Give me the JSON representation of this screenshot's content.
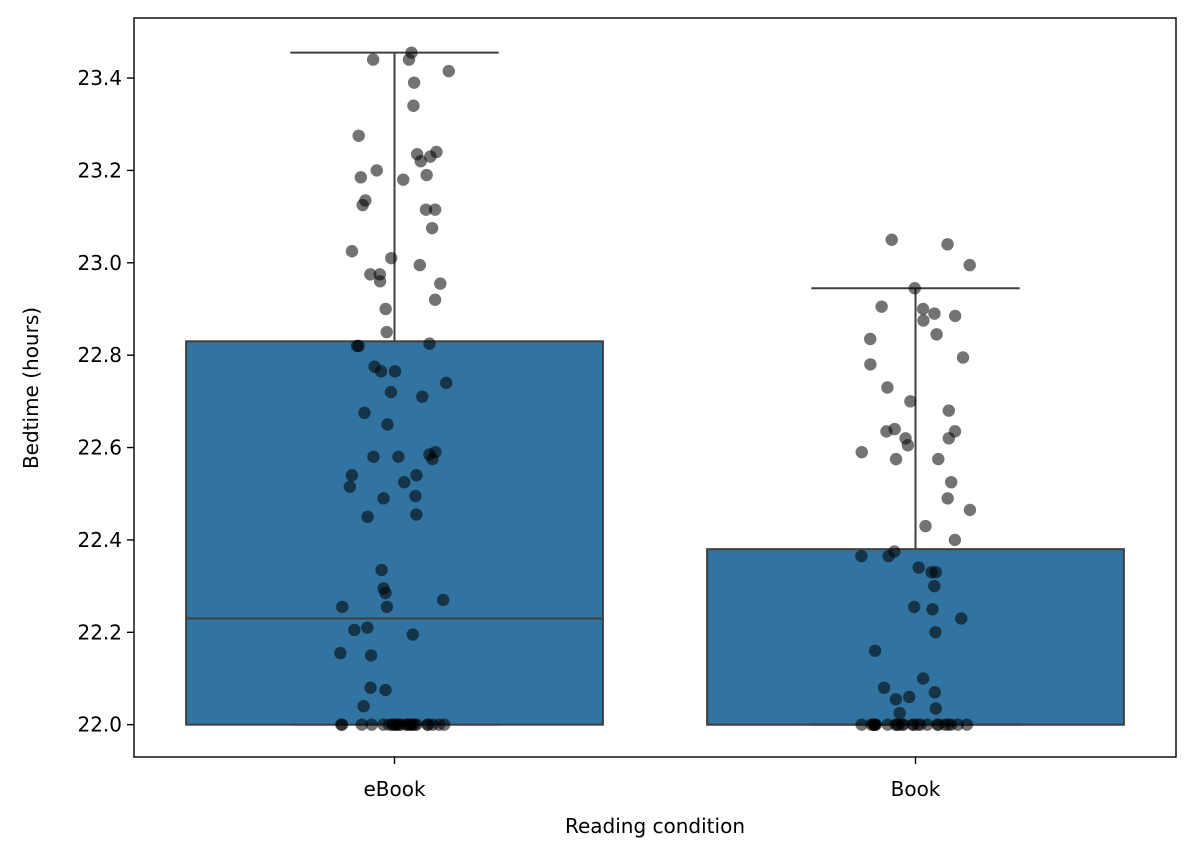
{
  "chart_data": {
    "type": "box",
    "xlabel": "Reading condition",
    "ylabel": "Bedtime (hours)",
    "ylim": [
      21.93,
      23.53
    ],
    "yticks": [
      22.0,
      22.2,
      22.4,
      22.6,
      22.8,
      23.0,
      23.2,
      23.4
    ],
    "categories": [
      "eBook",
      "Book"
    ],
    "grid": false,
    "legend": "none",
    "colors": {
      "box_fill": "#3274a1",
      "box_edge": "#3f3f3f",
      "point": "#000000"
    },
    "boxes": [
      {
        "category": "eBook",
        "min": 22.0,
        "q1": 22.0,
        "median": 22.23,
        "q3": 22.83,
        "max": 23.455
      },
      {
        "category": "Book",
        "min": 22.0,
        "q1": 22.0,
        "median": 22.0,
        "q3": 22.38,
        "max": 22.945
      }
    ],
    "points": [
      {
        "category": "eBook",
        "values": [
          23.455,
          23.44,
          23.44,
          23.415,
          23.39,
          23.34,
          23.275,
          23.24,
          23.235,
          23.23,
          23.22,
          23.2,
          23.19,
          23.185,
          23.18,
          23.135,
          23.125,
          23.115,
          23.115,
          23.075,
          23.025,
          23.01,
          22.995,
          22.975,
          22.975,
          22.96,
          22.955,
          22.92,
          22.9,
          22.85,
          22.825,
          22.82,
          22.82,
          22.775,
          22.765,
          22.765,
          22.74,
          22.72,
          22.71,
          22.675,
          22.65,
          22.59,
          22.585,
          22.58,
          22.58,
          22.575,
          22.54,
          22.54,
          22.525,
          22.515,
          22.495,
          22.49,
          22.455,
          22.45,
          22.335,
          22.295,
          22.285,
          22.27,
          22.255,
          22.255,
          22.21,
          22.205,
          22.195,
          22.155,
          22.15,
          22.08,
          22.075,
          22.04,
          22.0,
          22.0,
          22.0,
          22.0,
          22.0,
          22.0,
          22.0,
          22.0,
          22.0,
          22.0,
          22.0,
          22.0,
          22.0,
          22.0,
          22.0,
          22.0,
          22.0,
          22.0,
          22.0,
          22.0,
          22.0,
          22.0,
          22.0,
          22.0
        ]
      },
      {
        "category": "Book",
        "values": [
          23.05,
          23.04,
          22.995,
          22.945,
          22.905,
          22.9,
          22.89,
          22.885,
          22.875,
          22.845,
          22.835,
          22.795,
          22.78,
          22.73,
          22.7,
          22.68,
          22.64,
          22.635,
          22.635,
          22.62,
          22.62,
          22.605,
          22.59,
          22.575,
          22.575,
          22.525,
          22.49,
          22.465,
          22.43,
          22.4,
          22.375,
          22.365,
          22.365,
          22.34,
          22.33,
          22.33,
          22.3,
          22.255,
          22.25,
          22.23,
          22.2,
          22.16,
          22.1,
          22.08,
          22.07,
          22.06,
          22.055,
          22.035,
          22.025,
          22.0,
          22.0,
          22.0,
          22.0,
          22.0,
          22.0,
          22.0,
          22.0,
          22.0,
          22.0,
          22.0,
          22.0,
          22.0,
          22.0,
          22.0,
          22.0,
          22.0,
          22.0,
          22.0,
          22.0,
          22.0,
          22.0,
          22.0,
          22.0,
          22.0
        ]
      }
    ]
  }
}
